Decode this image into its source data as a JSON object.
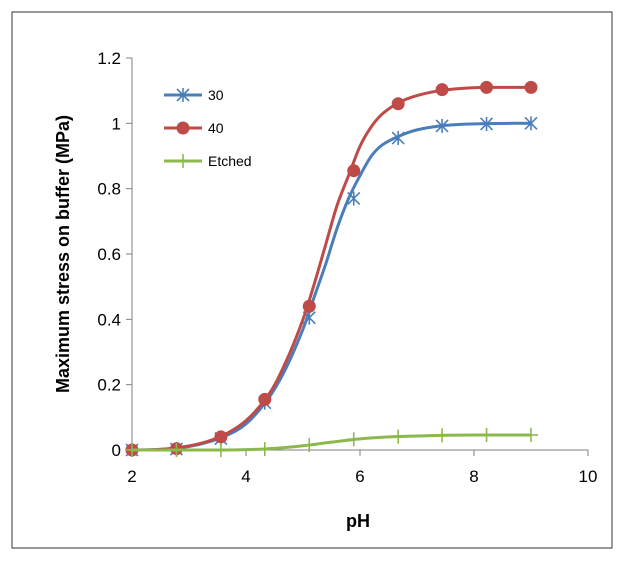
{
  "chart_data": {
    "type": "line",
    "title": "",
    "xlabel": "pH",
    "ylabel": "Maximum stress on buffer (MPa)",
    "xlim": [
      2,
      10
    ],
    "ylim": [
      0,
      1.2
    ],
    "xticks": [
      2,
      4,
      6,
      8,
      10
    ],
    "xtick_labels": [
      "2",
      "4",
      "6",
      "8",
      "10"
    ],
    "yticks": [
      0,
      0.2,
      0.4,
      0.6,
      0.8,
      1,
      1.2
    ],
    "ytick_labels": [
      "0",
      "0.2",
      "0.4",
      "0.6",
      "0.8",
      "1",
      "1.2"
    ],
    "grid": false,
    "legend_position": "top-left",
    "series": [
      {
        "name": "30",
        "color": "#4a7ebb",
        "marker": "asterisk",
        "x": [
          2.0,
          2.78,
          3.56,
          4.33,
          5.11,
          5.89,
          6.67,
          7.44,
          8.22,
          9.0
        ],
        "y": [
          0.0,
          0.003,
          0.035,
          0.145,
          0.405,
          0.77,
          0.955,
          0.992,
          0.998,
          1.0
        ],
        "curve_x": [
          2.0,
          2.4,
          2.8,
          3.2,
          3.6,
          4.0,
          4.4,
          4.7,
          5.0,
          5.2,
          5.4,
          5.6,
          5.8,
          6.0,
          6.2,
          6.4,
          6.7,
          7.0,
          7.4,
          7.8,
          8.2,
          8.6,
          9.0
        ],
        "curve_y": [
          0.0,
          0.001,
          0.006,
          0.018,
          0.04,
          0.08,
          0.16,
          0.25,
          0.37,
          0.47,
          0.57,
          0.68,
          0.77,
          0.84,
          0.9,
          0.935,
          0.962,
          0.98,
          0.992,
          0.997,
          0.999,
          1.0,
          1.0
        ]
      },
      {
        "name": "40",
        "color": "#be4b48",
        "marker": "circle",
        "x": [
          2.0,
          2.78,
          3.56,
          4.33,
          5.11,
          5.89,
          6.67,
          7.44,
          8.22,
          9.0
        ],
        "y": [
          0.0,
          0.004,
          0.04,
          0.155,
          0.44,
          0.855,
          1.06,
          1.103,
          1.11,
          1.11
        ],
        "curve_x": [
          2.0,
          2.4,
          2.8,
          3.2,
          3.6,
          4.0,
          4.4,
          4.7,
          5.0,
          5.2,
          5.4,
          5.6,
          5.8,
          6.0,
          6.2,
          6.4,
          6.7,
          7.0,
          7.4,
          7.8,
          8.2,
          8.6,
          9.0
        ],
        "curve_y": [
          0.0,
          0.001,
          0.007,
          0.02,
          0.045,
          0.09,
          0.17,
          0.27,
          0.4,
          0.51,
          0.63,
          0.75,
          0.84,
          0.93,
          0.99,
          1.03,
          1.065,
          1.085,
          1.1,
          1.107,
          1.11,
          1.11,
          1.11
        ]
      },
      {
        "name": "Etched",
        "color": "#8cb84e",
        "marker": "plus",
        "x": [
          2.0,
          2.78,
          3.56,
          4.33,
          5.11,
          5.89,
          6.67,
          7.44,
          8.22,
          9.0
        ],
        "y": [
          0.0,
          0.0,
          0.0,
          0.003,
          0.015,
          0.033,
          0.041,
          0.045,
          0.046,
          0.046
        ],
        "curve_x": [
          2.0,
          2.5,
          3.0,
          3.5,
          4.0,
          4.5,
          5.0,
          5.5,
          6.0,
          6.5,
          7.0,
          7.5,
          8.0,
          8.5,
          9.0
        ],
        "curve_y": [
          0.0,
          0.0,
          0.0,
          0.0,
          0.001,
          0.005,
          0.013,
          0.024,
          0.034,
          0.04,
          0.043,
          0.045,
          0.046,
          0.046,
          0.046
        ]
      }
    ]
  }
}
